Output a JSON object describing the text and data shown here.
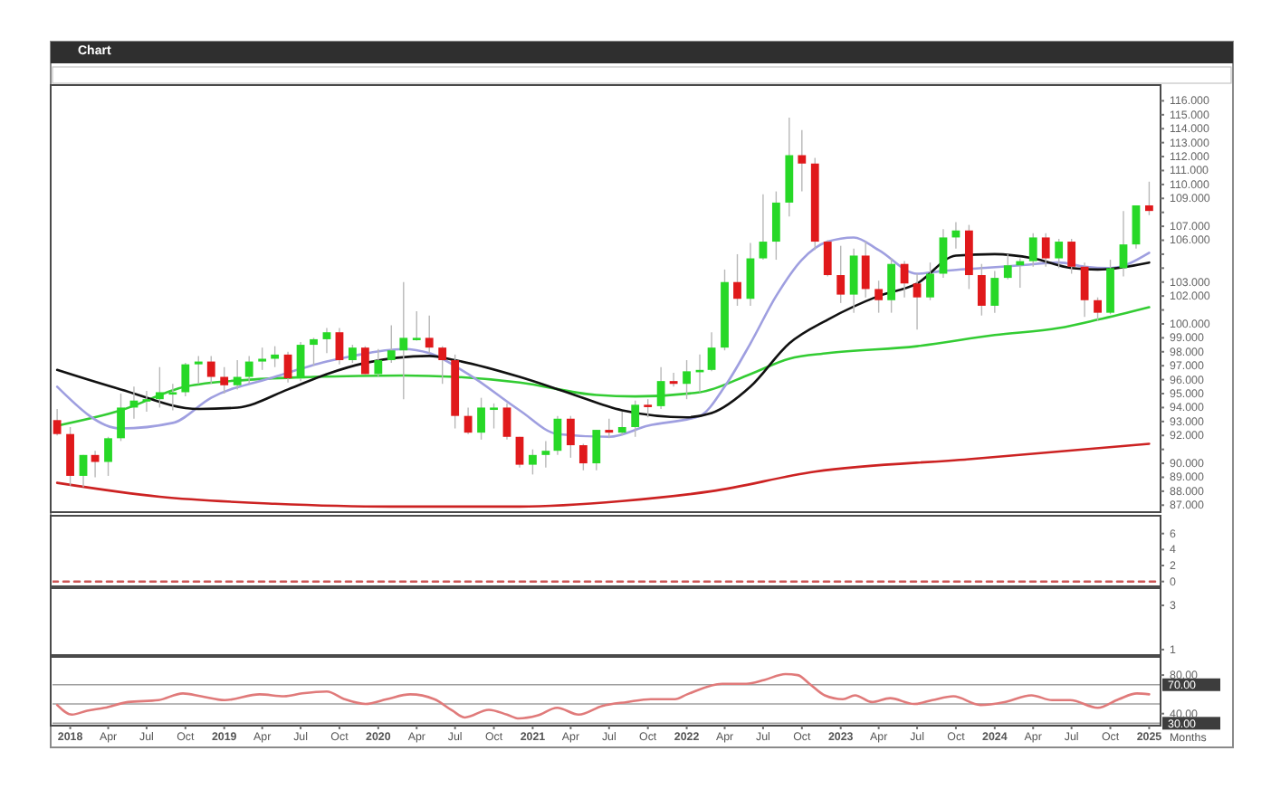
{
  "chart_data": [
    {
      "type": "candlestick",
      "title": "Chart",
      "tick_labels": "y",
      "xlim": [
        "2017-11-20",
        "2025-01-28"
      ],
      "ylim": [
        86.5,
        117.0
      ],
      "yticks": [
        {
          "value": 116,
          "label": "116.000"
        },
        {
          "value": 115,
          "label": "115.000"
        },
        {
          "value": 114,
          "label": "114.000"
        },
        {
          "value": 113,
          "label": "113.000"
        },
        {
          "value": 112,
          "label": "112.000"
        },
        {
          "value": 111,
          "label": "111.000"
        },
        {
          "value": 110,
          "label": "110.000"
        },
        {
          "value": 109,
          "label": "109.000"
        },
        {
          "value": 108,
          "label": null
        },
        {
          "value": 107,
          "label": "107.000"
        },
        {
          "value": 106,
          "label": "106.000"
        },
        {
          "value": 105,
          "label": null
        },
        {
          "value": 104,
          "label": null
        },
        {
          "value": 103,
          "label": "103.000"
        },
        {
          "value": 102,
          "label": "102.000"
        },
        {
          "value": 101,
          "label": null
        },
        {
          "value": 100,
          "label": "100.000"
        },
        {
          "value": 99,
          "label": "99.000"
        },
        {
          "value": 98,
          "label": "98.000"
        },
        {
          "value": 97,
          "label": "97.000"
        },
        {
          "value": 96,
          "label": "96.000"
        },
        {
          "value": 95,
          "label": "95.000"
        },
        {
          "value": 94,
          "label": "94.000"
        },
        {
          "value": 93,
          "label": "93.000"
        },
        {
          "value": 92,
          "label": "92.000"
        },
        {
          "value": 91,
          "label": null
        },
        {
          "value": 90,
          "label": "90.000"
        },
        {
          "value": 89,
          "label": "89.000"
        },
        {
          "value": 88,
          "label": "88.000"
        },
        {
          "value": 87,
          "label": "87.000"
        }
      ],
      "x": [
        "2017-12",
        "2018-01",
        "2018-02",
        "2018-03",
        "2018-04",
        "2018-05",
        "2018-06",
        "2018-07",
        "2018-08",
        "2018-09",
        "2018-10",
        "2018-11",
        "2018-12",
        "2019-01",
        "2019-02",
        "2019-03",
        "2019-04",
        "2019-05",
        "2019-06",
        "2019-07",
        "2019-08",
        "2019-09",
        "2019-10",
        "2019-11",
        "2019-12",
        "2020-01",
        "2020-02",
        "2020-03",
        "2020-04",
        "2020-05",
        "2020-06",
        "2020-07",
        "2020-08",
        "2020-09",
        "2020-10",
        "2020-11",
        "2020-12",
        "2021-01",
        "2021-02",
        "2021-03",
        "2021-04",
        "2021-05",
        "2021-06",
        "2021-07",
        "2021-08",
        "2021-09",
        "2021-10",
        "2021-11",
        "2021-12",
        "2022-01",
        "2022-02",
        "2022-03",
        "2022-04",
        "2022-05",
        "2022-06",
        "2022-07",
        "2022-08",
        "2022-09",
        "2022-10",
        "2022-11",
        "2022-12",
        "2023-01",
        "2023-02",
        "2023-03",
        "2023-04",
        "2023-05",
        "2023-06",
        "2023-07",
        "2023-08",
        "2023-09",
        "2023-10",
        "2023-11",
        "2023-12",
        "2024-01",
        "2024-02",
        "2024-03",
        "2024-04",
        "2024-05",
        "2024-06",
        "2024-07",
        "2024-08",
        "2024-09",
        "2024-10",
        "2024-11",
        "2024-12",
        "2025-01"
      ],
      "ohlc": [
        [
          93.1,
          93.9,
          92.0,
          92.1
        ],
        [
          92.1,
          92.6,
          88.4,
          89.1
        ],
        [
          89.1,
          90.6,
          88.3,
          90.6
        ],
        [
          90.6,
          90.9,
          89.0,
          90.1
        ],
        [
          90.1,
          91.9,
          89.1,
          91.8
        ],
        [
          91.8,
          95.0,
          91.6,
          94.0
        ],
        [
          94.0,
          95.5,
          93.2,
          94.5
        ],
        [
          94.5,
          95.2,
          93.7,
          94.6
        ],
        [
          94.6,
          96.9,
          94.0,
          95.1
        ],
        [
          95.1,
          95.7,
          93.8,
          95.1
        ],
        [
          95.1,
          97.2,
          94.8,
          97.1
        ],
        [
          97.1,
          97.7,
          95.7,
          97.3
        ],
        [
          97.3,
          97.7,
          95.7,
          96.2
        ],
        [
          96.2,
          96.9,
          95.0,
          95.6
        ],
        [
          95.6,
          97.4,
          95.3,
          96.2
        ],
        [
          96.2,
          97.7,
          95.7,
          97.3
        ],
        [
          97.3,
          98.3,
          96.7,
          97.5
        ],
        [
          97.5,
          98.4,
          96.9,
          97.8
        ],
        [
          97.8,
          98.0,
          95.8,
          96.1
        ],
        [
          96.1,
          98.7,
          95.9,
          98.5
        ],
        [
          98.5,
          99.0,
          97.0,
          98.9
        ],
        [
          98.9,
          99.7,
          97.9,
          99.4
        ],
        [
          99.4,
          99.7,
          97.1,
          97.4
        ],
        [
          97.4,
          98.5,
          97.2,
          98.3
        ],
        [
          98.3,
          98.4,
          96.4,
          96.4
        ],
        [
          96.4,
          98.2,
          96.2,
          97.4
        ],
        [
          97.4,
          99.9,
          97.2,
          98.1
        ],
        [
          98.1,
          103.0,
          94.6,
          99.0
        ],
        [
          99.0,
          100.9,
          98.8,
          99.0
        ],
        [
          99.0,
          100.6,
          97.9,
          98.3
        ],
        [
          98.3,
          98.4,
          95.7,
          97.4
        ],
        [
          97.4,
          97.8,
          92.5,
          93.4
        ],
        [
          93.4,
          94.0,
          92.1,
          92.2
        ],
        [
          92.2,
          94.7,
          91.7,
          94.0
        ],
        [
          93.9,
          94.3,
          92.5,
          94.0
        ],
        [
          94.0,
          94.3,
          91.7,
          91.9
        ],
        [
          91.9,
          91.9,
          89.7,
          89.9
        ],
        [
          89.9,
          91.0,
          89.2,
          90.6
        ],
        [
          90.6,
          91.6,
          89.7,
          90.9
        ],
        [
          90.9,
          93.4,
          90.6,
          93.2
        ],
        [
          93.2,
          93.4,
          90.4,
          91.3
        ],
        [
          91.3,
          91.4,
          89.5,
          90.0
        ],
        [
          90.0,
          92.4,
          89.5,
          92.4
        ],
        [
          92.4,
          93.2,
          91.8,
          92.2
        ],
        [
          92.2,
          93.7,
          92.0,
          92.6
        ],
        [
          92.6,
          94.5,
          91.9,
          94.2
        ],
        [
          94.2,
          94.6,
          93.3,
          94.1
        ],
        [
          94.1,
          96.9,
          93.9,
          95.9
        ],
        [
          95.9,
          96.5,
          95.5,
          95.7
        ],
        [
          95.7,
          97.4,
          94.6,
          96.6
        ],
        [
          96.6,
          97.8,
          95.1,
          96.7
        ],
        [
          96.7,
          99.4,
          96.6,
          98.3
        ],
        [
          98.3,
          103.9,
          98.1,
          103.0
        ],
        [
          103.0,
          105.0,
          101.3,
          101.8
        ],
        [
          101.8,
          105.8,
          101.3,
          104.7
        ],
        [
          104.7,
          109.3,
          104.6,
          105.9
        ],
        [
          105.9,
          109.5,
          104.6,
          108.7
        ],
        [
          108.7,
          114.8,
          107.7,
          112.1
        ],
        [
          112.1,
          113.9,
          109.5,
          111.5
        ],
        [
          111.5,
          111.9,
          105.3,
          105.9
        ],
        [
          105.9,
          106.0,
          103.4,
          103.5
        ],
        [
          103.5,
          105.6,
          101.5,
          102.1
        ],
        [
          102.1,
          105.4,
          100.8,
          104.9
        ],
        [
          104.9,
          105.9,
          101.9,
          102.5
        ],
        [
          102.5,
          103.1,
          100.8,
          101.7
        ],
        [
          101.7,
          104.7,
          100.8,
          104.3
        ],
        [
          104.3,
          104.5,
          101.9,
          102.9
        ],
        [
          102.9,
          103.6,
          99.6,
          101.9
        ],
        [
          101.9,
          104.4,
          101.7,
          103.6
        ],
        [
          103.6,
          106.8,
          103.3,
          106.2
        ],
        [
          106.2,
          107.3,
          105.4,
          106.7
        ],
        [
          106.7,
          107.1,
          102.5,
          103.5
        ],
        [
          103.5,
          104.3,
          100.6,
          101.3
        ],
        [
          101.3,
          103.8,
          100.8,
          103.3
        ],
        [
          103.3,
          105.0,
          103.2,
          104.2
        ],
        [
          104.2,
          104.7,
          102.6,
          104.5
        ],
        [
          104.5,
          106.5,
          104.1,
          106.2
        ],
        [
          106.2,
          106.5,
          104.1,
          104.7
        ],
        [
          104.7,
          106.1,
          104.0,
          105.9
        ],
        [
          105.9,
          106.1,
          103.6,
          104.1
        ],
        [
          104.1,
          104.4,
          100.5,
          101.7
        ],
        [
          101.7,
          101.9,
          100.2,
          100.8
        ],
        [
          100.8,
          104.6,
          100.7,
          104.0
        ],
        [
          104.0,
          108.1,
          103.4,
          105.7
        ],
        [
          105.7,
          108.5,
          105.4,
          108.5
        ],
        [
          108.5,
          110.2,
          107.8,
          108.1
        ]
      ],
      "colors": [
        "#e0191b",
        "#e0191b",
        "#27d827",
        "#e0191b",
        "#27d827",
        "#27d827",
        "#27d827",
        "#27d827",
        "#27d827",
        "#27d827",
        "#27d827",
        "#27d827",
        "#e0191b",
        "#e0191b",
        "#27d827",
        "#27d827",
        "#27d827",
        "#27d827",
        "#e0191b",
        "#27d827",
        "#27d827",
        "#27d827",
        "#e0191b",
        "#27d827",
        "#e0191b",
        "#27d827",
        "#27d827",
        "#27d827",
        "#27d827",
        "#e0191b",
        "#e0191b",
        "#e0191b",
        "#e0191b",
        "#27d827",
        "#27d827",
        "#e0191b",
        "#e0191b",
        "#27d827",
        "#27d827",
        "#27d827",
        "#e0191b",
        "#e0191b",
        "#27d827",
        "#e0191b",
        "#27d827",
        "#27d827",
        "#e0191b",
        "#27d827",
        "#e0191b",
        "#27d827",
        "#27d827",
        "#27d827",
        "#27d827",
        "#e0191b",
        "#27d827",
        "#27d827",
        "#27d827",
        "#27d827",
        "#e0191b",
        "#e0191b",
        "#e0191b",
        "#e0191b",
        "#27d827",
        "#e0191b",
        "#e0191b",
        "#27d827",
        "#e0191b",
        "#e0191b",
        "#27d827",
        "#27d827",
        "#27d827",
        "#e0191b",
        "#e0191b",
        "#27d827",
        "#27d827",
        "#27d827",
        "#27d827",
        "#e0191b",
        "#27d827",
        "#e0191b",
        "#e0191b",
        "#e0191b",
        "#27d827",
        "#27d827",
        "#27d827",
        "#e0191b"
      ],
      "series": [
        {
          "type": "line",
          "color": "#cc2222",
          "x": [
            "2017-12",
            "2018-08",
            "2019-05",
            "2020-02",
            "2020-12",
            "2021-08",
            "2022-03",
            "2022-11",
            "2023-11",
            "2025-01"
          ],
          "values": [
            88.6,
            87.6,
            87.1,
            86.9,
            86.9,
            87.3,
            88.0,
            89.4,
            90.3,
            91.4
          ]
        },
        {
          "type": "line",
          "color": "#33cc33",
          "x": [
            "2017-12",
            "2018-05",
            "2018-10",
            "2019-03",
            "2019-08",
            "2020-03",
            "2020-07",
            "2020-12",
            "2021-06",
            "2021-09",
            "2022-02",
            "2022-06",
            "2022-09",
            "2022-12",
            "2023-07",
            "2024-01",
            "2024-06",
            "2024-09",
            "2025-01"
          ],
          "values": [
            92.7,
            93.8,
            95.5,
            96.0,
            96.2,
            96.3,
            96.2,
            95.8,
            94.9,
            94.8,
            95.1,
            96.4,
            97.5,
            97.9,
            98.4,
            99.2,
            99.7,
            100.3,
            101.2
          ]
        },
        {
          "type": "line",
          "color": "#9f9fe0",
          "x": [
            "2017-12",
            "2018-05",
            "2018-09",
            "2018-12",
            "2019-05",
            "2019-09",
            "2019-11",
            "2020-03",
            "2020-05",
            "2020-08",
            "2020-12",
            "2021-03",
            "2021-07",
            "2021-10",
            "2022-02",
            "2022-04",
            "2022-06",
            "2022-08",
            "2022-10",
            "2022-12",
            "2023-02",
            "2023-04",
            "2023-07",
            "2023-09",
            "2023-12",
            "2024-03",
            "2024-06",
            "2024-08",
            "2024-10",
            "2025-01"
          ],
          "values": [
            95.5,
            92.5,
            92.9,
            94.7,
            96.2,
            97.3,
            97.7,
            98.2,
            97.9,
            96.4,
            93.8,
            92.1,
            91.9,
            92.7,
            93.4,
            95.5,
            98.6,
            102.0,
            104.6,
            105.9,
            106.2,
            105.3,
            103.6,
            103.8,
            104.0,
            104.2,
            104.4,
            104.1,
            104.0,
            105.1
          ]
        },
        {
          "type": "line",
          "color": "#111111",
          "x": [
            "2017-12",
            "2018-05",
            "2018-11",
            "2019-02",
            "2019-06",
            "2019-09",
            "2019-12",
            "2020-05",
            "2020-07",
            "2020-12",
            "2021-04",
            "2021-08",
            "2022-01",
            "2022-03",
            "2022-06",
            "2022-09",
            "2022-12",
            "2023-04",
            "2023-07",
            "2023-10",
            "2024-01",
            "2024-04",
            "2024-07",
            "2024-09",
            "2025-01"
          ],
          "values": [
            96.7,
            95.3,
            93.9,
            94.0,
            95.3,
            96.4,
            97.2,
            97.7,
            97.4,
            96.2,
            95.0,
            93.8,
            93.3,
            93.6,
            95.5,
            98.6,
            100.3,
            102.0,
            102.9,
            104.9,
            105.0,
            104.7,
            104.0,
            103.9,
            104.4
          ]
        }
      ]
    },
    {
      "type": "line",
      "tick_labels": "y",
      "xlim": [
        "2017-11-20",
        "2025-01-28"
      ],
      "ylim": [
        -0.6,
        8.0
      ],
      "yticks": [
        6,
        4,
        2,
        0
      ],
      "line_style": "dashed",
      "series": [
        {
          "color": "#cc5555",
          "x": [
            "2017-11-20",
            "2025-01-28"
          ],
          "values": [
            0,
            0
          ]
        }
      ]
    },
    {
      "type": "line",
      "tick_labels": "y",
      "xlim": [
        "2017-11-20",
        "2025-01-28"
      ],
      "ylim": [
        0.75,
        3.7
      ],
      "yticks": [
        3,
        1
      ]
    },
    {
      "type": "line",
      "xlim": [
        "2017-11-20",
        "2025-01-28"
      ],
      "ylim": [
        27.5,
        97
      ],
      "xlabel": "Months",
      "yticks": [
        {
          "value": 80,
          "label": "80.00"
        },
        {
          "value": 40,
          "label": "40.00"
        }
      ],
      "ref_lines": [
        {
          "axis": "y",
          "value": 70,
          "label": "70.00",
          "color": "#a0a0a0"
        },
        {
          "axis": "y",
          "value": 50,
          "color": "#a0a0a0"
        },
        {
          "axis": "y",
          "value": 30,
          "label": "30.00",
          "color": "#a0a0a0"
        }
      ],
      "xticks": [
        {
          "value": "2018-01",
          "label": "2018"
        },
        {
          "value": "2018-04",
          "label": "Apr"
        },
        {
          "value": "2018-07",
          "label": "Jul"
        },
        {
          "value": "2018-10",
          "label": "Oct"
        },
        {
          "value": "2019-01",
          "label": "2019"
        },
        {
          "value": "2019-04",
          "label": "Apr"
        },
        {
          "value": "2019-07",
          "label": "Jul"
        },
        {
          "value": "2019-10",
          "label": "Oct"
        },
        {
          "value": "2020-01",
          "label": "2020"
        },
        {
          "value": "2020-04",
          "label": "Apr"
        },
        {
          "value": "2020-07",
          "label": "Jul"
        },
        {
          "value": "2020-10",
          "label": "Oct"
        },
        {
          "value": "2021-01",
          "label": "2021"
        },
        {
          "value": "2021-04",
          "label": "Apr"
        },
        {
          "value": "2021-07",
          "label": "Jul"
        },
        {
          "value": "2021-10",
          "label": "Oct"
        },
        {
          "value": "2022-01",
          "label": "2022"
        },
        {
          "value": "2022-04",
          "label": "Apr"
        },
        {
          "value": "2022-07",
          "label": "Jul"
        },
        {
          "value": "2022-10",
          "label": "Oct"
        },
        {
          "value": "2023-01",
          "label": "2023"
        },
        {
          "value": "2023-04",
          "label": "Apr"
        },
        {
          "value": "2023-07",
          "label": "Jul"
        },
        {
          "value": "2023-10",
          "label": "Oct"
        },
        {
          "value": "2024-01",
          "label": "2024"
        },
        {
          "value": "2024-04",
          "label": "Apr"
        },
        {
          "value": "2024-07",
          "label": "Jul"
        },
        {
          "value": "2024-10",
          "label": "Oct"
        },
        {
          "value": "2025-01",
          "label": "2025"
        }
      ],
      "series": [
        {
          "color": "#e07a7a",
          "x": [
            "2017-12-01",
            "2018-01-05",
            "2018-02-10",
            "2018-03-23",
            "2018-05-18",
            "2018-07-29",
            "2018-09-25",
            "2018-11-07",
            "2019-01-02",
            "2019-03-26",
            "2019-05-23",
            "2019-07-05",
            "2019-09-01",
            "2019-10-13",
            "2019-12-02",
            "2020-01-21",
            "2020-03-17",
            "2020-05-13",
            "2020-06-25",
            "2020-07-24",
            "2020-09-19",
            "2020-11-01",
            "2020-11-29",
            "2021-01-12",
            "2021-02-28",
            "2021-04-20",
            "2021-06-15",
            "2021-08-12",
            "2021-10-08",
            "2021-12-04",
            "2022-01-02",
            "2022-03-26",
            "2022-05-22",
            "2022-07-04",
            "2022-08-23",
            "2022-09-21",
            "2022-10-19",
            "2022-11-24",
            "2023-01-06",
            "2023-02-04",
            "2023-03-16",
            "2023-04-28",
            "2023-06-24",
            "2023-08-06",
            "2023-09-25",
            "2023-11-28",
            "2024-01-24",
            "2024-03-28",
            "2024-05-16",
            "2024-06-28",
            "2024-09-01",
            "2024-10-21",
            "2024-12-03",
            "2025-01-01"
          ],
          "values": [
            49,
            39,
            43,
            46,
            52,
            54,
            61,
            58,
            54,
            60,
            58,
            61,
            63,
            55,
            50,
            55,
            60,
            55,
            43,
            36,
            44,
            39,
            35,
            38,
            46,
            39,
            48,
            52,
            55,
            55,
            60,
            71,
            71,
            75,
            81,
            80,
            71,
            59,
            55,
            59,
            52,
            56,
            50,
            54,
            58,
            49,
            52,
            59,
            54,
            54,
            46,
            55,
            61,
            60
          ]
        }
      ]
    }
  ]
}
